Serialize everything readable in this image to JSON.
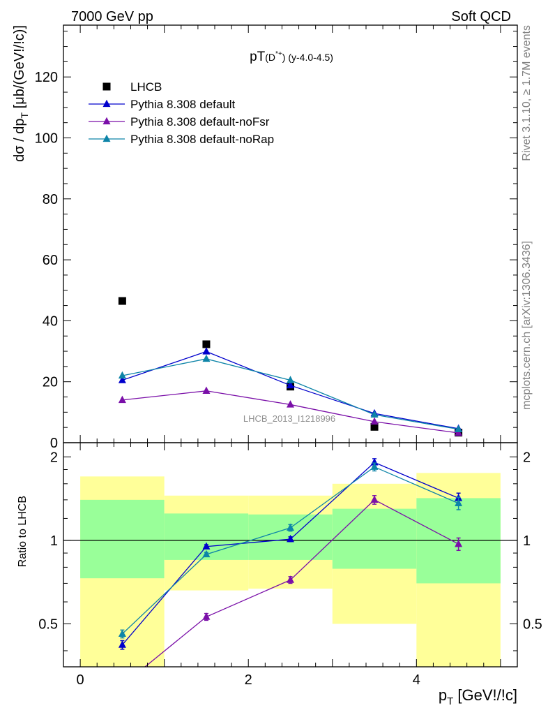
{
  "header": {
    "left": "7000 GeV pp",
    "right": "Soft QCD"
  },
  "side_labels": {
    "rivet": "Rivet 3.1.10, ≥ 1.7M events",
    "mcplots": "mcplots.cern.ch [arXiv:1306.3436]"
  },
  "chart_data": [
    {
      "type": "scatter",
      "title": "pT(D*+) (y-4.0-4.5)",
      "title_main": "pT",
      "title_paren": "(D",
      "title_sup": "*+",
      "title_rest": ") (y-4.0-4.5)",
      "watermark": "LHCB_2013_I1218996",
      "ylabel": "dσ / dp_T [μb/(GeV!/!c)]",
      "ylabel_main": "dσ / dp",
      "ylabel_sub": "T",
      "ylabel_rest": " [μb/(GeV!/!c)]",
      "xlim": [
        -0.2,
        5.2
      ],
      "ylim": [
        0,
        137
      ],
      "y_ticks": [
        0,
        20,
        40,
        60,
        80,
        100,
        120
      ],
      "legend_placement": "top-left",
      "series": [
        {
          "name": "LHCB",
          "kind": "data",
          "color": "#000000",
          "x": [
            0.5,
            1.5,
            2.5,
            3.5,
            4.5
          ],
          "y": [
            46.5,
            32.3,
            18.4,
            5.2,
            3.3
          ]
        },
        {
          "name": "Pythia 8.308 default",
          "kind": "mc",
          "color": "#0000cc",
          "x": [
            0.5,
            1.5,
            2.5,
            3.5,
            4.5
          ],
          "y": [
            20.5,
            29.9,
            18.8,
            9.6,
            4.6
          ]
        },
        {
          "name": "Pythia 8.308 default-noFsr",
          "kind": "mc",
          "color": "#7a0fa8",
          "x": [
            0.5,
            1.5,
            2.5,
            3.5,
            4.5
          ],
          "y": [
            14.0,
            17.0,
            12.5,
            6.9,
            3.2
          ]
        },
        {
          "name": "Pythia 8.308 default-noRap",
          "kind": "mc",
          "color": "#0d84a8",
          "x": [
            0.5,
            1.5,
            2.5,
            3.5,
            4.5
          ],
          "y": [
            22.0,
            27.5,
            20.5,
            9.2,
            4.4
          ]
        }
      ]
    },
    {
      "type": "scatter",
      "ylabel": "Ratio to LHCB",
      "xlabel": "p_T [GeV!/!c]",
      "xlabel_main": "p",
      "xlabel_sub": "T",
      "xlabel_rest": " [GeV!/!c]",
      "xlim": [
        -0.2,
        5.2
      ],
      "ylim": [
        0.35,
        2.25
      ],
      "x_ticks": [
        0,
        2,
        4
      ],
      "y_ticks": [
        0.5,
        1,
        2
      ],
      "reference_line": 1,
      "bands": [
        {
          "x": [
            0,
            1
          ],
          "green": [
            0.73,
            1.4
          ],
          "yellow": [
            0.35,
            1.7
          ]
        },
        {
          "x": [
            1,
            2
          ],
          "green": [
            0.85,
            1.25
          ],
          "yellow": [
            0.66,
            1.45
          ]
        },
        {
          "x": [
            2,
            3
          ],
          "green": [
            0.85,
            1.24
          ],
          "yellow": [
            0.67,
            1.45
          ]
        },
        {
          "x": [
            3,
            4
          ],
          "green": [
            0.79,
            1.3
          ],
          "yellow": [
            0.5,
            1.6
          ]
        },
        {
          "x": [
            4,
            5
          ],
          "green": [
            0.7,
            1.42
          ],
          "yellow": [
            0.35,
            1.75
          ]
        }
      ],
      "series": [
        {
          "name": "Pythia 8.308 default",
          "color": "#0000cc",
          "x": [
            0.5,
            1.5,
            2.5,
            3.5,
            4.5
          ],
          "y": [
            0.42,
            0.95,
            1.01,
            1.91,
            1.42
          ],
          "err": [
            0.015,
            0.015,
            0.02,
            0.06,
            0.06
          ]
        },
        {
          "name": "Pythia 8.308 default-noFsr",
          "color": "#7a0fa8",
          "x": [
            0.5,
            1.5,
            2.5,
            3.5,
            4.5
          ],
          "y": [
            0.3,
            0.53,
            0.72,
            1.4,
            0.97
          ],
          "err": [
            0.01,
            0.015,
            0.02,
            0.05,
            0.05
          ]
        },
        {
          "name": "Pythia 8.308 default-noRap",
          "color": "#0d84a8",
          "x": [
            0.5,
            1.5,
            2.5,
            3.5,
            4.5
          ],
          "y": [
            0.46,
            0.89,
            1.11,
            1.84,
            1.36
          ],
          "err": [
            0.015,
            0.015,
            0.03,
            0.06,
            0.07
          ]
        }
      ]
    }
  ]
}
